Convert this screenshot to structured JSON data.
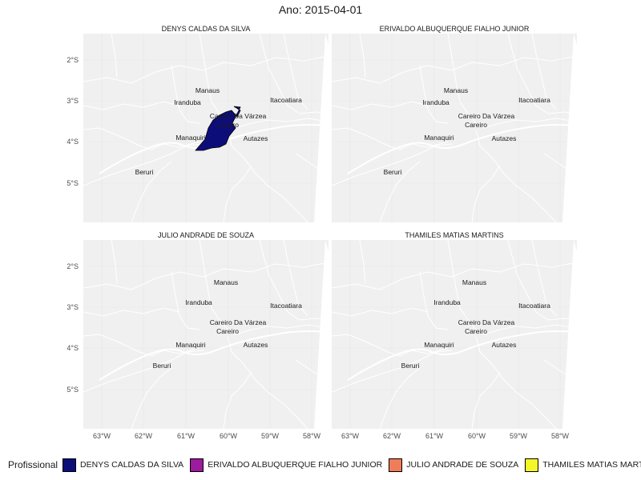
{
  "title": "Ano: 2015-04-01",
  "panels": [
    {
      "name": "DENYS CALDAS DA SILVA",
      "highlighted": true
    },
    {
      "name": "ERIVALDO ALBUQUERQUE FIALHO JUNIOR",
      "highlighted": false
    },
    {
      "name": "JULIO ANDRADE DE SOUZA",
      "highlighted": false
    },
    {
      "name": "THAMILES MATIAS MARTINS",
      "highlighted": false
    }
  ],
  "lat_ticks": [
    "2°S",
    "3°S",
    "4°S",
    "5°S"
  ],
  "lon_ticks": [
    "63°W",
    "62°W",
    "61°W",
    "60°W",
    "59°W",
    "58°W"
  ],
  "cities": [
    "Manaus",
    "Iranduba",
    "Itacoatiara",
    "Careiro Da Várzea",
    "Careiro",
    "Manaquiri",
    "Autazes",
    "Beruri"
  ],
  "colors": {
    "panel_bg": "#f0f0f0",
    "boundaries": "#ffffff",
    "highlight_fill": "#0d0d7a",
    "highlight_stroke": "#000000"
  },
  "legend": {
    "title": "Profissional",
    "entries": [
      {
        "label": "DENYS CALDAS DA SILVA",
        "color": "#0d0d7a"
      },
      {
        "label": "ERIVALDO ALBUQUERQUE FIALHO JUNIOR",
        "color": "#9e1a9e"
      },
      {
        "label": "JULIO ANDRADE DE SOUZA",
        "color": "#f07d5a"
      },
      {
        "label": "THAMILES MATIAS MARTINS",
        "color": "#f5f527"
      }
    ]
  }
}
